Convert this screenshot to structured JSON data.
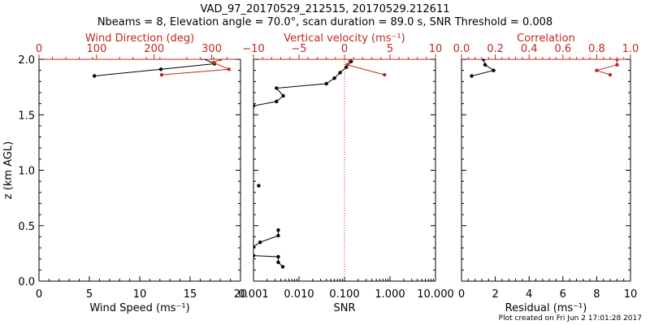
{
  "figure": {
    "title_line1": "VAD_97_20170529_212515, 20170529.212611",
    "title_line2": "Nbeams = 8, Elevation angle = 70.0°, scan duration = 89.0 s, SNR Threshold = 0.008",
    "footer": "Plot created on Fri Jun  2 17:01:28 2017",
    "colors": {
      "black": "#000000",
      "red": "#c0281e"
    }
  },
  "chart_data": [
    {
      "type": "line",
      "panel": "left",
      "ylabel": "z (km AGL)",
      "ylim": [
        0,
        2.0
      ],
      "yticks": [
        "0.0",
        "0.5",
        "1.0",
        "1.5",
        "2.0"
      ],
      "xlabel_bottom": "Wind Speed (ms⁻¹)",
      "xlim_bottom": [
        0,
        20
      ],
      "xticks_bottom": [
        "0",
        "5",
        "10",
        "15",
        "20"
      ],
      "xlabel_top": "Wind Direction (deg)",
      "xlim_top": [
        0,
        350
      ],
      "xticks_top": [
        "0",
        "100",
        "200",
        "300"
      ],
      "series": [
        {
          "name": "Wind Speed",
          "axis": "bottom",
          "color": "#000000",
          "points": [
            [
              16.2,
              2.01
            ],
            [
              17.4,
              1.96
            ],
            [
              12.1,
              1.91
            ],
            [
              5.5,
              1.85
            ]
          ]
        },
        {
          "name": "Wind Direction",
          "axis": "top",
          "color": "#c0281e",
          "points": [
            [
              315,
              2.0
            ],
            [
              303,
              1.97
            ],
            [
              330,
              1.91
            ],
            [
              213,
              1.86
            ]
          ]
        }
      ]
    },
    {
      "type": "line",
      "panel": "middle",
      "xscale_bottom": "log",
      "xlabel_bottom": "SNR",
      "xlim_bottom": [
        0.001,
        10
      ],
      "xticks_bottom": [
        "0.001",
        "0.010",
        "0.100",
        "1.000",
        "10.000"
      ],
      "xlabel_top": "Vertical velocity (ms⁻¹)",
      "xlim_top": [
        -10,
        10
      ],
      "xticks_top": [
        "−10",
        "−5",
        "0",
        "5",
        "10"
      ],
      "reference_line": {
        "axis": "top",
        "value": 0,
        "style": "dotted",
        "color": "#c0281e"
      },
      "series": [
        {
          "name": "SNR",
          "axis": "bottom",
          "color": "#000000",
          "segments": [
            [
              [
                0.14,
                1.98
              ],
              [
                0.11,
                1.93
              ],
              [
                0.08,
                1.88
              ],
              [
                0.06,
                1.83
              ],
              [
                0.04,
                1.78
              ],
              [
                0.0032,
                1.74
              ],
              [
                0.0045,
                1.67
              ],
              [
                0.0032,
                1.62
              ],
              [
                0.001,
                1.58
              ]
            ],
            [
              [
                0.0013,
                0.86
              ]
            ],
            [
              [
                0.0035,
                0.46
              ],
              [
                0.0035,
                0.41
              ],
              [
                0.0014,
                0.35
              ],
              [
                0.001,
                0.31
              ]
            ],
            [
              [
                0.001,
                0.23
              ],
              [
                0.0035,
                0.22
              ],
              [
                0.0035,
                0.17
              ],
              [
                0.0044,
                0.13
              ]
            ]
          ]
        },
        {
          "name": "Vertical velocity",
          "axis": "top",
          "color": "#c0281e",
          "points": [
            [
              0.6,
              2.0
            ],
            [
              0.3,
              1.95
            ],
            [
              4.4,
              1.86
            ]
          ]
        }
      ]
    },
    {
      "type": "line",
      "panel": "right",
      "xlabel_bottom": "Residual (ms⁻¹)",
      "xlim_bottom": [
        0,
        10
      ],
      "xticks_bottom": [
        "0",
        "2",
        "4",
        "6",
        "8",
        "10"
      ],
      "xlabel_top": "Correlation",
      "xlim_top": [
        0,
        1.0
      ],
      "xticks_top": [
        "0.0",
        "0.2",
        "0.4",
        "0.6",
        "0.8",
        "1.0"
      ],
      "series": [
        {
          "name": "Residual",
          "axis": "bottom",
          "color": "#000000",
          "points": [
            [
              1.3,
              2.0
            ],
            [
              1.4,
              1.95
            ],
            [
              1.9,
              1.9
            ],
            [
              0.6,
              1.85
            ]
          ]
        },
        {
          "name": "Correlation",
          "axis": "top",
          "color": "#c0281e",
          "points": [
            [
              0.92,
              2.0
            ],
            [
              0.92,
              1.95
            ],
            [
              0.8,
              1.9
            ],
            [
              0.88,
              1.86
            ]
          ]
        }
      ]
    }
  ]
}
